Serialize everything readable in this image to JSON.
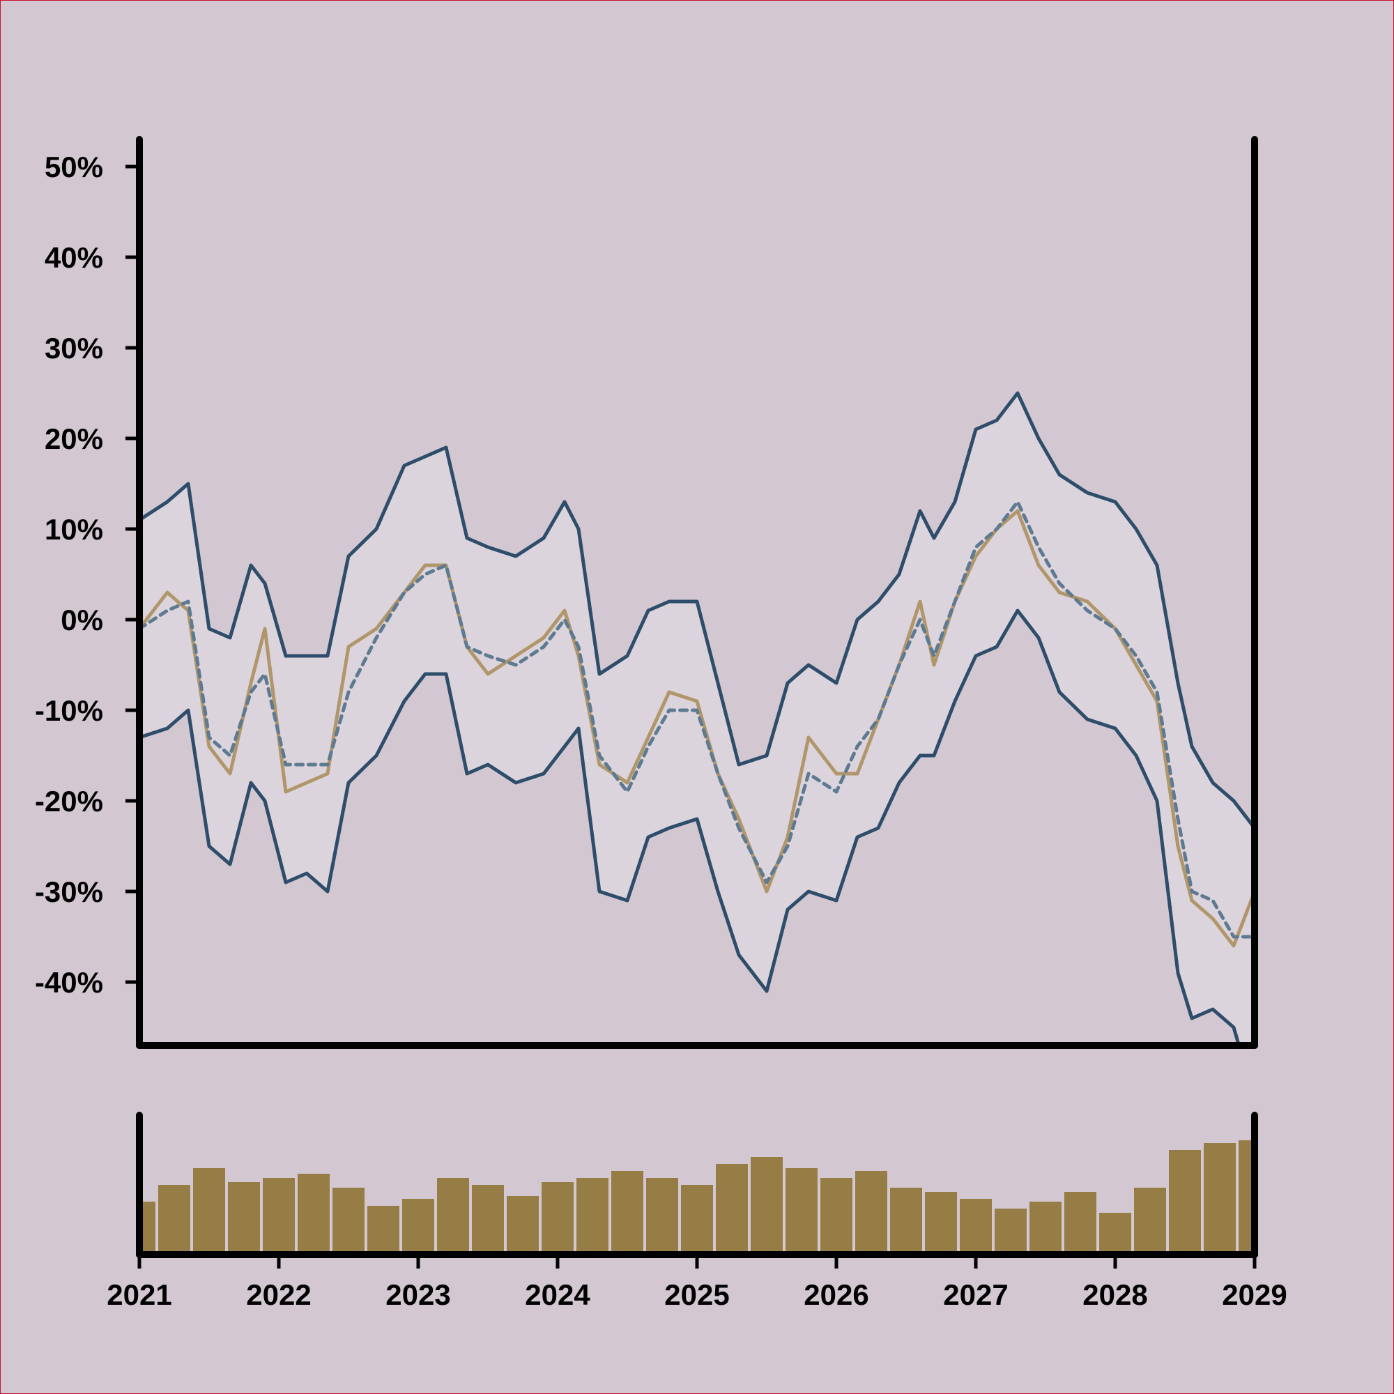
{
  "chart_data": [
    {
      "type": "line",
      "title": "",
      "xlabel": "",
      "ylabel": "",
      "x_tick_labels": [
        "2021",
        "2022",
        "2023",
        "2024",
        "2025",
        "2026",
        "2027",
        "2028",
        "2029"
      ],
      "x_range": [
        2021,
        2029
      ],
      "y_tick_values": [
        -40,
        -30,
        -20,
        -10,
        0,
        10,
        20,
        30,
        40,
        50
      ],
      "y_tick_labels": [
        "-40%",
        "-30%",
        "-20%",
        "-10%",
        "0%",
        "10%",
        "20%",
        "30%",
        "40%",
        "50%"
      ],
      "ylim": [
        -47,
        53
      ],
      "grid": false,
      "legend": "none",
      "x": [
        2021.0,
        2021.2,
        2021.35,
        2021.5,
        2021.65,
        2021.8,
        2021.9,
        2022.05,
        2022.2,
        2022.35,
        2022.5,
        2022.7,
        2022.9,
        2023.05,
        2023.2,
        2023.35,
        2023.5,
        2023.7,
        2023.9,
        2024.05,
        2024.15,
        2024.3,
        2024.5,
        2024.65,
        2024.8,
        2025.0,
        2025.15,
        2025.3,
        2025.5,
        2025.65,
        2025.8,
        2026.0,
        2026.15,
        2026.3,
        2026.45,
        2026.6,
        2026.7,
        2026.85,
        2027.0,
        2027.15,
        2027.3,
        2027.45,
        2027.6,
        2027.8,
        2028.0,
        2028.15,
        2028.3,
        2028.45,
        2028.55,
        2028.7,
        2028.85,
        2029.0
      ],
      "series": [
        {
          "line_style": "solid",
          "values": [
            -1,
            3,
            1,
            -14,
            -17,
            -7,
            -1,
            -19,
            -18,
            -17,
            -3,
            -1,
            3,
            6,
            6,
            -3,
            -6,
            -4,
            -2,
            1,
            -4,
            -16,
            -18,
            -13,
            -8,
            -9,
            -17,
            -22,
            -30,
            -24,
            -13,
            -17,
            -17,
            -11,
            -5,
            2,
            -5,
            2,
            7,
            10,
            12,
            6,
            3,
            2,
            -1,
            -5,
            -9,
            -25,
            -31,
            -33,
            -36,
            -30
          ],
          "line_color": "#b0966a"
        },
        {
          "line_style": "dashed",
          "values": [
            -1,
            1,
            2,
            -13,
            -15,
            -8,
            -6,
            -16,
            -16,
            -16,
            -8,
            -2,
            3,
            5,
            6,
            -3,
            -4,
            -5,
            -3,
            0,
            -3,
            -15,
            -19,
            -14,
            -10,
            -10,
            -17,
            -23,
            -29,
            -25,
            -17,
            -19,
            -14,
            -11,
            -5,
            0,
            -4,
            2,
            8,
            10,
            13,
            8,
            4,
            1,
            -1,
            -4,
            -8,
            -22,
            -30,
            -31,
            -35,
            -35
          ],
          "line_color": "#5d7a90"
        },
        {
          "line_style": "solid",
          "values": [
            11,
            13,
            15,
            -1,
            -2,
            6,
            4,
            -4,
            -4,
            -4,
            7,
            10,
            17,
            18,
            19,
            9,
            8,
            7,
            9,
            13,
            10,
            -6,
            -4,
            1,
            2,
            2,
            -7,
            -16,
            -15,
            -7,
            -5,
            -7,
            0,
            2,
            5,
            12,
            9,
            13,
            21,
            22,
            25,
            20,
            16,
            14,
            13,
            10,
            6,
            -7,
            -14,
            -18,
            -20,
            -23
          ],
          "line_color": "#2e4d6a"
        },
        {
          "line_style": "solid",
          "values": [
            -13,
            -12,
            -10,
            -25,
            -27,
            -18,
            -20,
            -29,
            -28,
            -30,
            -18,
            -15,
            -9,
            -6,
            -6,
            -17,
            -16,
            -18,
            -17,
            -14,
            -12,
            -30,
            -31,
            -24,
            -23,
            -22,
            -30,
            -37,
            -41,
            -32,
            -30,
            -31,
            -24,
            -23,
            -18,
            -15,
            -15,
            -9,
            -4,
            -3,
            1,
            -2,
            -8,
            -11,
            -12,
            -15,
            -20,
            -39,
            -44,
            -43,
            -45,
            -53
          ],
          "line_color": "#2e4d6a"
        }
      ]
    },
    {
      "type": "bar",
      "title": "",
      "xlabel": "",
      "ylabel": "",
      "x_range": [
        2021,
        2029
      ],
      "ylim": [
        0,
        100
      ],
      "bar_color": "#967c45",
      "x": [
        2021.0,
        2021.25,
        2021.5,
        2021.75,
        2022.0,
        2022.25,
        2022.5,
        2022.75,
        2023.0,
        2023.25,
        2023.5,
        2023.75,
        2024.0,
        2024.25,
        2024.5,
        2024.75,
        2025.0,
        2025.25,
        2025.5,
        2025.75,
        2026.0,
        2026.25,
        2026.5,
        2026.75,
        2027.0,
        2027.25,
        2027.5,
        2027.75,
        2028.0,
        2028.25,
        2028.5,
        2028.75,
        2029.0
      ],
      "values": [
        38,
        50,
        62,
        52,
        55,
        58,
        48,
        35,
        40,
        55,
        50,
        42,
        52,
        55,
        60,
        55,
        50,
        65,
        70,
        62,
        55,
        60,
        48,
        45,
        40,
        33,
        38,
        45,
        30,
        48,
        75,
        80,
        82
      ]
    }
  ]
}
